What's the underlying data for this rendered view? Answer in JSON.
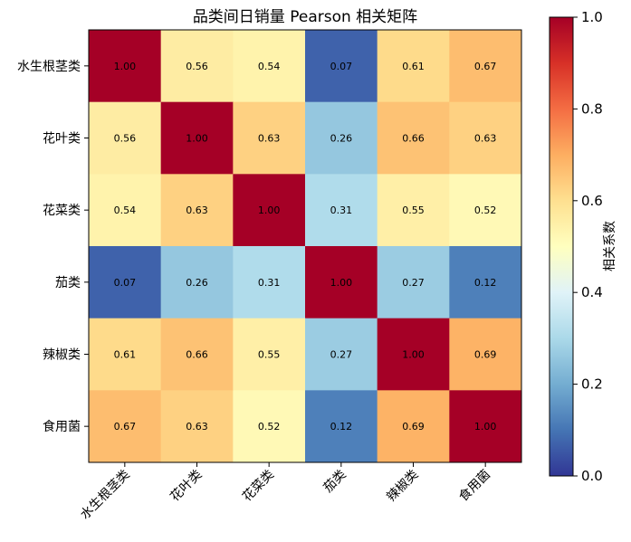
{
  "chart_data": {
    "type": "heatmap",
    "title": "品类间日销量 Pearson 相关矩阵",
    "rows": [
      "水生根茎类",
      "花叶类",
      "花菜类",
      "茄类",
      "辣椒类",
      "食用菌"
    ],
    "columns": [
      "水生根茎类",
      "花叶类",
      "花菜类",
      "茄类",
      "辣椒类",
      "食用菌"
    ],
    "values": [
      [
        1.0,
        0.56,
        0.54,
        0.07,
        0.61,
        0.67
      ],
      [
        0.56,
        1.0,
        0.63,
        0.26,
        0.66,
        0.63
      ],
      [
        0.54,
        0.63,
        1.0,
        0.31,
        0.55,
        0.52
      ],
      [
        0.07,
        0.26,
        0.31,
        1.0,
        0.27,
        0.12
      ],
      [
        0.61,
        0.66,
        0.55,
        0.27,
        1.0,
        0.69
      ],
      [
        0.67,
        0.63,
        0.52,
        0.12,
        0.69,
        1.0
      ]
    ],
    "colorbar": {
      "label": "相关系数",
      "range": [
        0.0,
        1.0
      ],
      "ticks": [
        "0.0",
        "0.2",
        "0.4",
        "0.6",
        "0.8",
        "1.0"
      ],
      "colormap": "RdYlBu_r"
    }
  }
}
